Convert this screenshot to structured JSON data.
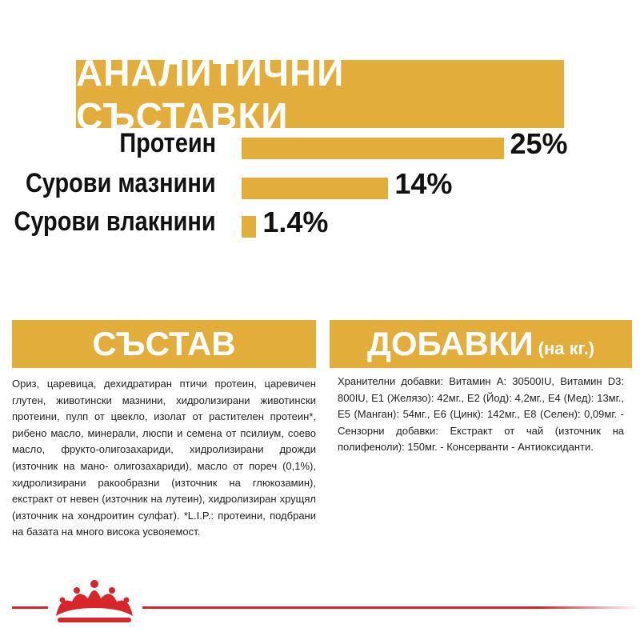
{
  "header": {
    "title": "АНАЛИТИЧНИ СЪСТАВКИ"
  },
  "analysis": {
    "categories": [
      "Протеин",
      "Сурови мазнини",
      "Сурови влакнини"
    ],
    "values": [
      25,
      14,
      1.4
    ],
    "value_labels": [
      "25%",
      "14%",
      "1.4%"
    ]
  },
  "composition": {
    "title": "СЪСТАВ",
    "text": "Ориз, царевица, дехидратиран птичи протеин, царевичен глутен, животински мазнини, хидролизирани животински протеини, пулп от цвекло, изолат от растителен протеин*, рибено масло, минерали, люспи и семена от псилиум, соево масло, фрукто-олигозахариди, хидролизирани дрожди (източник на мано- олигозахариди), масло от пореч (0,1%), хидролизирани ракообразни (източник на глюкозамин), екстракт от невен (източник на лутеин), хидролизиран хрущял (източник на хондроитин сулфат). *L.I.P.: протеини, подбрани на базата на много висока усвояемост."
  },
  "additives": {
    "title": "ДОБАВКИ",
    "unit": "(на кг.)",
    "text": "Хранителни добавки: Витамин A: 30500IU, Витамин D3: 800IU, E1 (Желязо): 42мг., E2 (Йод): 4,2мг., E4 (Мед): 13мг., E5 (Манган): 54мг., E6 (Цинк): 142мг., E8 (Селен): 0,09мг. - Сензорни добавки: Екстракт от чай (източник на полифеноли): 150мг. - Консерванти - Антиоксиданти."
  }
}
